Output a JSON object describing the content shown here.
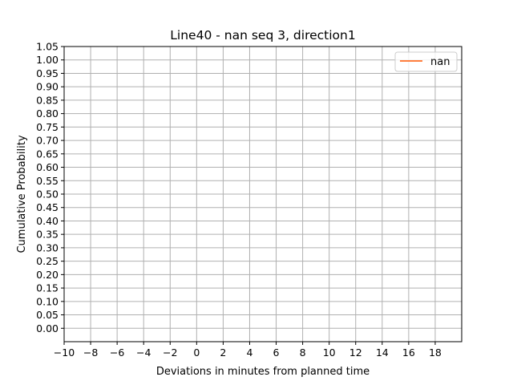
{
  "chart_data": {
    "type": "line",
    "title": "Line40 - nan seq 3, direction1",
    "xlabel": "Deviations in minutes from planned time",
    "ylabel": "Cumulative Probability",
    "xlim": [
      -10,
      20
    ],
    "ylim": [
      -0.05,
      1.05
    ],
    "x_ticks": [
      -10,
      -8,
      -6,
      -4,
      -2,
      0,
      2,
      4,
      6,
      8,
      10,
      12,
      14,
      16,
      18
    ],
    "y_ticks": [
      0.0,
      0.05,
      0.1,
      0.15,
      0.2,
      0.25,
      0.3,
      0.35,
      0.4,
      0.45,
      0.5,
      0.55,
      0.6,
      0.65,
      0.7,
      0.75,
      0.8,
      0.85,
      0.9,
      0.95,
      1.0,
      1.05
    ],
    "grid": true,
    "legend_position": "top-right",
    "series": [
      {
        "name": "nan",
        "color": "#ff7f3f",
        "x": [],
        "y": []
      }
    ]
  },
  "colors": {
    "grid": "#b0b0b0",
    "axes": "#000000"
  }
}
